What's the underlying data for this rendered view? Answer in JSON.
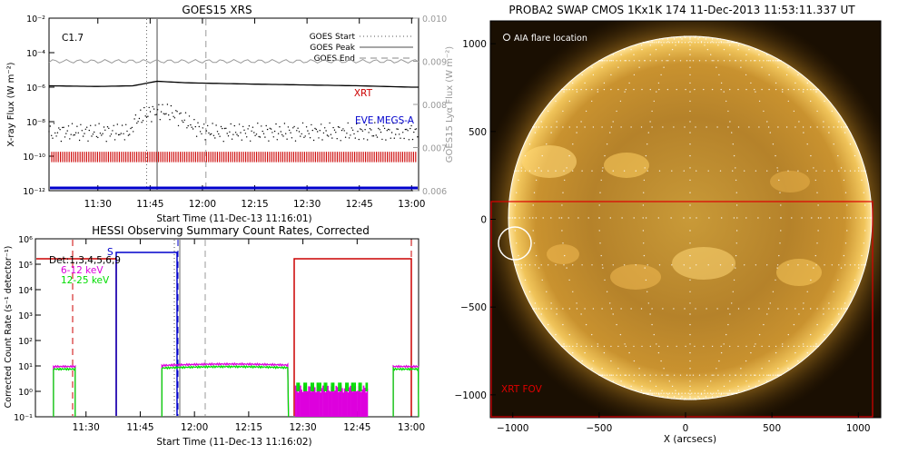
{
  "goes_panel": {
    "title": "GOES15 XRS",
    "class_label": "C1.7",
    "ylabel": "X-ray Flux (W m⁻²)",
    "ylabel_right": "GOES15 Lyα Flux (W m⁻²)",
    "xlabel": "Start Time (11-Dec-13 11:16:01)",
    "legend": [
      "GOES Start",
      "GOES Peak",
      "GOES End"
    ],
    "xrt_label": "XRT",
    "eve_label": "EVE MEGS-A",
    "colors": {
      "xrt": "#cc0000",
      "eve": "#0000cc",
      "lya": "#999999"
    }
  },
  "hessi_panel": {
    "title": "HESSI Observing Summary Count Rates, Corrected",
    "ylabel": "Corrected Count Rate (s⁻¹ detector⁻¹)",
    "xlabel": "Start Time (11-Dec-13 11:16:02)",
    "series_labels": [
      "Det:1,3,4,5,6,9",
      "6-12 keV",
      "12-25 keV"
    ],
    "s_flag": "S",
    "colors": {
      "low": "#dd00dd",
      "high": "#00dd00"
    }
  },
  "swap_panel": {
    "title": "PROBA2 SWAP CMOS 1Kx1K 174 11-Dec-2013 11:53:11.337 UT",
    "legend": "AIA flare location",
    "fov_label": "XRT FOV",
    "xlabel": "X (arcsecs)",
    "colors": {
      "fov": "#dd0000"
    }
  },
  "chart_data": [
    {
      "type": "line",
      "title": "GOES15 XRS",
      "xlabel": "Start Time (11-Dec-13 11:16:01)",
      "ylabel": "X-ray Flux (W m⁻²)",
      "log_y": true,
      "ylim": [
        1e-12,
        0.01
      ],
      "xlim": [
        "11:16",
        "13:02"
      ],
      "y2lim": [
        0.006,
        0.01
      ],
      "x_ticks": [
        "11:30",
        "11:45",
        "12:00",
        "12:15",
        "12:30",
        "12:45",
        "13:00"
      ],
      "y_ticks": [
        "10⁻¹²",
        "10⁻¹⁰",
        "10⁻⁸",
        "10⁻⁶",
        "10⁻⁴",
        "10⁻²"
      ],
      "y2_ticks": [
        "0.006",
        "0.007",
        "0.008",
        "0.009",
        "0.010"
      ],
      "markers": {
        "GOES Start": "11:44",
        "GOES Peak": "11:47",
        "GOES End": "12:01"
      },
      "series": [
        {
          "name": "XRT",
          "x": [
            "11:16",
            "11:30",
            "11:40",
            "11:47",
            "11:55",
            "12:15",
            "12:45",
            "13:00"
          ],
          "values": [
            1.2e-06,
            1.1e-06,
            1.2e-06,
            2.2e-06,
            1.8e-06,
            1.5e-06,
            1.2e-06,
            1e-06
          ]
        },
        {
          "name": "EVE MEGS-A",
          "values": [
            1.2e-12
          ]
        },
        {
          "name": "Lyα",
          "values": [
            0.009
          ]
        }
      ]
    },
    {
      "type": "line",
      "title": "HESSI Observing Summary Count Rates, Corrected",
      "xlabel": "Start Time (11-Dec-13 11:16:02)",
      "ylabel": "Corrected Count Rate (s⁻¹ detector⁻¹)",
      "log_y": true,
      "ylim": [
        0.1,
        1000000.0
      ],
      "xlim": [
        "11:16",
        "13:02"
      ],
      "x_ticks": [
        "11:30",
        "11:45",
        "12:00",
        "12:15",
        "12:30",
        "12:45",
        "13:00"
      ],
      "y_ticks": [
        "10⁻¹",
        "10⁰",
        "10¹",
        "10²",
        "10³",
        "10⁴",
        "10⁵",
        "10⁶"
      ],
      "series": [
        {
          "name": "6-12 keV",
          "x": [
            "11:21",
            "11:27",
            "11:52",
            "12:15",
            "12:26",
            "12:28",
            "12:48",
            "12:55",
            "13:02"
          ],
          "values": [
            9,
            9,
            10,
            12,
            10,
            1.5,
            1.5,
            9,
            10
          ]
        },
        {
          "name": "12-25 keV",
          "x": [
            "11:21",
            "11:27",
            "11:52",
            "12:15",
            "12:26",
            "12:28",
            "12:48",
            "12:55",
            "13:02"
          ],
          "values": [
            7,
            8,
            9,
            10,
            8,
            1.2,
            1.3,
            8,
            9
          ]
        }
      ]
    },
    {
      "type": "scatter",
      "title": "PROBA2 SWAP CMOS 1Kx1K 174 11-Dec-2013 11:53:11.337 UT",
      "xlabel": "X (arcsecs)",
      "xlim": [
        -1130,
        1130
      ],
      "ylim": [
        -1130,
        1130
      ],
      "x_ticks": [
        "−1000",
        "−500",
        "0",
        "500",
        "1000"
      ],
      "y_ticks": [
        "−1000",
        "−500",
        "0",
        "500",
        "1000"
      ],
      "series": [
        {
          "name": "AIA flare location",
          "x": [
            -960
          ],
          "values": [
            -90
          ]
        }
      ],
      "xrt_fov": {
        "x": [
          -1100,
          1000
        ],
        "y": [
          -1100,
          70
        ]
      }
    }
  ]
}
